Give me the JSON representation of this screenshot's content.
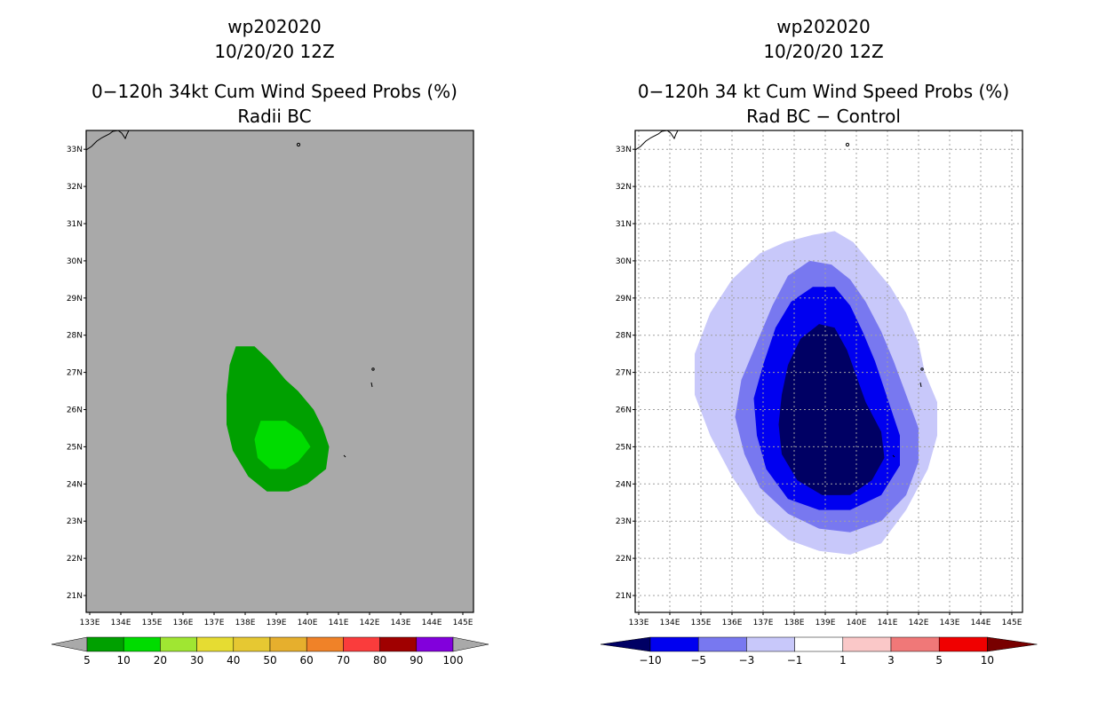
{
  "chart_data": [
    {
      "type": "contour-map",
      "title": [
        "wp202020",
        "10/20/20 12Z",
        "0−120h 34kt Cum Wind Speed Probs (%)",
        "Radii BC"
      ],
      "xlabels": [
        "133E",
        "134E",
        "135E",
        "136E",
        "137E",
        "138E",
        "139E",
        "140E",
        "141E",
        "142E",
        "143E",
        "144E",
        "145E"
      ],
      "ylabels": [
        "21N",
        "22N",
        "23N",
        "24N",
        "25N",
        "26N",
        "27N",
        "28N",
        "29N",
        "30N",
        "31N",
        "32N",
        "33N"
      ],
      "xlim": [
        133,
        145.5
      ],
      "ylim": [
        20.6,
        33.4
      ],
      "grid": false,
      "background": "#a9a9a9",
      "contours": [
        {
          "level": "5-10",
          "color": "#00a000",
          "points": [
            [
              137.7,
              27.7
            ],
            [
              138.3,
              27.7
            ],
            [
              138.8,
              27.3
            ],
            [
              139.3,
              26.8
            ],
            [
              139.7,
              26.5
            ],
            [
              140.2,
              26.0
            ],
            [
              140.5,
              25.5
            ],
            [
              140.7,
              25.0
            ],
            [
              140.6,
              24.4
            ],
            [
              140.0,
              24.0
            ],
            [
              139.4,
              23.8
            ],
            [
              138.7,
              23.8
            ],
            [
              138.1,
              24.2
            ],
            [
              137.6,
              24.9
            ],
            [
              137.4,
              25.6
            ],
            [
              137.4,
              26.4
            ],
            [
              137.5,
              27.2
            ]
          ]
        },
        {
          "level": "10-20",
          "color": "#00dc00",
          "points": [
            [
              138.5,
              25.7
            ],
            [
              139.3,
              25.7
            ],
            [
              139.8,
              25.4
            ],
            [
              140.1,
              25.0
            ],
            [
              139.7,
              24.6
            ],
            [
              139.3,
              24.4
            ],
            [
              138.8,
              24.4
            ],
            [
              138.4,
              24.7
            ],
            [
              138.3,
              25.2
            ]
          ]
        }
      ],
      "colorbar": {
        "labels": [
          "5",
          "10",
          "20",
          "30",
          "40",
          "50",
          "60",
          "70",
          "80",
          "90",
          "100"
        ],
        "colors": [
          "#00a000",
          "#00dc00",
          "#a0e632",
          "#e6dc32",
          "#e6c832",
          "#e6af2d",
          "#f08228",
          "#fa3c3c",
          "#a00000",
          "#8200dc"
        ],
        "end_colors": [
          "#a9a9a9",
          "#a9a9a9"
        ]
      }
    },
    {
      "type": "contour-map",
      "title": [
        "wp202020",
        "10/20/20 12Z",
        "0−120h 34 kt Cum Wind Speed Probs (%)",
        "Rad BC − Control"
      ],
      "xlabels": [
        "133E",
        "134E",
        "135E",
        "136E",
        "137E",
        "138E",
        "139E",
        "140E",
        "141E",
        "142E",
        "143E",
        "144E",
        "145E"
      ],
      "ylabels": [
        "21N",
        "22N",
        "23N",
        "24N",
        "25N",
        "26N",
        "27N",
        "28N",
        "29N",
        "30N",
        "31N",
        "32N",
        "33N"
      ],
      "xlim": [
        133,
        145.5
      ],
      "ylim": [
        20.6,
        33.4
      ],
      "grid": true,
      "background": "#ffffff",
      "contours": [
        {
          "level": "-3 to -1",
          "color": "#c8c8fa",
          "points": [
            [
              138.6,
              30.7
            ],
            [
              139.3,
              30.8
            ],
            [
              139.9,
              30.5
            ],
            [
              140.5,
              29.9
            ],
            [
              141.1,
              29.3
            ],
            [
              141.6,
              28.6
            ],
            [
              142.0,
              27.8
            ],
            [
              142.2,
              27.0
            ],
            [
              142.6,
              26.2
            ],
            [
              142.6,
              25.3
            ],
            [
              142.3,
              24.4
            ],
            [
              141.6,
              23.3
            ],
            [
              140.8,
              22.4
            ],
            [
              139.8,
              22.1
            ],
            [
              138.8,
              22.2
            ],
            [
              137.8,
              22.5
            ],
            [
              136.8,
              23.2
            ],
            [
              136.0,
              24.2
            ],
            [
              135.3,
              25.3
            ],
            [
              134.8,
              26.4
            ],
            [
              134.8,
              27.5
            ],
            [
              135.3,
              28.6
            ],
            [
              136.0,
              29.5
            ],
            [
              136.9,
              30.2
            ],
            [
              137.7,
              30.5
            ]
          ]
        },
        {
          "level": "-5 to -3",
          "color": "#7878f0",
          "points": [
            [
              138.5,
              30.0
            ],
            [
              139.2,
              29.9
            ],
            [
              139.8,
              29.5
            ],
            [
              140.3,
              28.9
            ],
            [
              140.8,
              28.1
            ],
            [
              141.2,
              27.3
            ],
            [
              141.6,
              26.4
            ],
            [
              142.0,
              25.5
            ],
            [
              142.0,
              24.6
            ],
            [
              141.6,
              23.7
            ],
            [
              140.8,
              23.0
            ],
            [
              139.8,
              22.7
            ],
            [
              138.8,
              22.8
            ],
            [
              137.8,
              23.2
            ],
            [
              136.9,
              23.9
            ],
            [
              136.4,
              24.8
            ],
            [
              136.1,
              25.8
            ],
            [
              136.3,
              26.8
            ],
            [
              136.8,
              27.8
            ],
            [
              137.3,
              28.8
            ],
            [
              137.8,
              29.6
            ]
          ]
        },
        {
          "level": "-10 to -5",
          "color": "#0000f0",
          "points": [
            [
              138.6,
              29.3
            ],
            [
              139.3,
              29.3
            ],
            [
              139.8,
              28.8
            ],
            [
              140.2,
              28.1
            ],
            [
              140.6,
              27.3
            ],
            [
              141.0,
              26.3
            ],
            [
              141.4,
              25.3
            ],
            [
              141.4,
              24.5
            ],
            [
              140.8,
              23.7
            ],
            [
              139.8,
              23.3
            ],
            [
              138.8,
              23.3
            ],
            [
              137.8,
              23.6
            ],
            [
              137.1,
              24.4
            ],
            [
              136.8,
              25.3
            ],
            [
              136.7,
              26.3
            ],
            [
              137.0,
              27.2
            ],
            [
              137.4,
              28.2
            ],
            [
              137.9,
              28.9
            ]
          ]
        },
        {
          "level": "< -10",
          "color": "#000064",
          "points": [
            [
              138.8,
              28.3
            ],
            [
              139.3,
              28.2
            ],
            [
              139.7,
              27.6
            ],
            [
              140.0,
              26.9
            ],
            [
              140.3,
              26.2
            ],
            [
              140.8,
              25.4
            ],
            [
              140.9,
              24.7
            ],
            [
              140.5,
              24.1
            ],
            [
              139.8,
              23.7
            ],
            [
              138.9,
              23.7
            ],
            [
              138.1,
              24.1
            ],
            [
              137.6,
              24.8
            ],
            [
              137.5,
              25.6
            ],
            [
              137.6,
              26.4
            ],
            [
              137.8,
              27.2
            ],
            [
              138.2,
              27.9
            ]
          ]
        }
      ],
      "colorbar": {
        "labels": [
          "−10",
          "−5",
          "−3",
          "−1",
          "1",
          "3",
          "5",
          "10"
        ],
        "colors": [
          "#0000f0",
          "#7878f0",
          "#c8c8fa",
          "#ffffff",
          "#fac8c8",
          "#f07878",
          "#f00000"
        ],
        "end_colors": [
          "#000064",
          "#780000"
        ]
      }
    }
  ]
}
